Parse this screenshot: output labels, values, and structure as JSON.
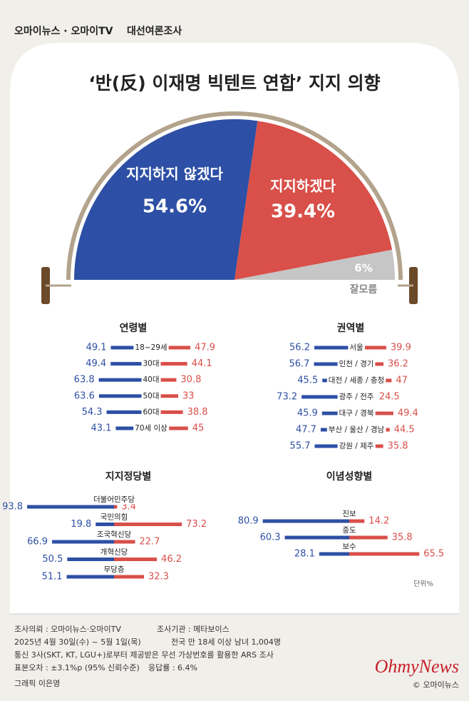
{
  "header": {
    "brand": "오마이뉴스 · 오마이TV",
    "topic": "대선여론조사"
  },
  "chart_data": [
    {
      "type": "pie",
      "title": "‘반(反) 이재명 빅텐트 연합’ 지지 의향",
      "categories": [
        "지지하지 않겠다",
        "지지하겠다",
        "잘모름"
      ],
      "values": [
        54.6,
        39.4,
        6
      ],
      "value_labels": [
        "54.6%",
        "39.4%",
        "6%"
      ],
      "colors": [
        "#2d4fa5",
        "#d94f49",
        "#c6c6c6"
      ]
    },
    {
      "type": "bar",
      "title": "연령별",
      "categories": [
        "18~29세",
        "30대",
        "40대",
        "50대",
        "60대",
        "70세 이상"
      ],
      "series": [
        {
          "color": "#2d4fa5",
          "values": [
            49.1,
            49.4,
            63.8,
            63.6,
            54.3,
            43.1
          ]
        },
        {
          "color": "#d94f49",
          "values": [
            47.9,
            44.1,
            30.8,
            33,
            38.8,
            45
          ]
        }
      ]
    },
    {
      "type": "bar",
      "title": "권역별",
      "categories": [
        "서울",
        "인천 / 경기",
        "대전 / 세종 / 충청",
        "광주 / 전주",
        "대구 / 경북",
        "부산 / 울산 / 경남",
        "강원 / 제주"
      ],
      "series": [
        {
          "color": "#2d4fa5",
          "values": [
            56.2,
            56.7,
            45.5,
            73.2,
            45.9,
            47.7,
            55.7
          ]
        },
        {
          "color": "#d94f49",
          "values": [
            39.9,
            36.2,
            47,
            24.5,
            49.4,
            44.5,
            35.8
          ]
        }
      ]
    },
    {
      "type": "bar",
      "title": "지지정당별",
      "categories": [
        "더불어민주당",
        "국민의힘",
        "조국혁신당",
        "개혁신당",
        "무당층"
      ],
      "series": [
        {
          "color": "#2d4fa5",
          "values": [
            93.8,
            19.8,
            66.9,
            50.5,
            51.1
          ]
        },
        {
          "color": "#d94f49",
          "values": [
            3.4,
            73.2,
            22.7,
            46.2,
            32.3
          ]
        }
      ]
    },
    {
      "type": "bar",
      "title": "이념성향별",
      "unit": "단위%",
      "categories": [
        "진보",
        "중도",
        "보수"
      ],
      "series": [
        {
          "color": "#2d4fa5",
          "values": [
            80.9,
            60.3,
            28.1
          ]
        },
        {
          "color": "#d94f49",
          "values": [
            14.2,
            35.8,
            65.5
          ]
        }
      ]
    }
  ],
  "footer": {
    "client": "조사의뢰 : 오마이뉴스·오마이TV",
    "agency": "조사기관 : 메타보이스",
    "period": "2025년 4월 30일(수) ~ 5월 1일(목)",
    "sample": "전국 만 18세 이상 남녀 1,004명",
    "method": "통신 3사(SKT, KT, LGU+)로부터 제공받은 무선 가상번호를 활용한 ARS 조사",
    "error": "표본오차 : ±3.1%p (95% 신뢰수준)",
    "rate": "응답률 : 6.4%",
    "credit": "그래픽 이은영",
    "logo": "OhmyNews",
    "copyright": "© 오마이뉴스"
  }
}
